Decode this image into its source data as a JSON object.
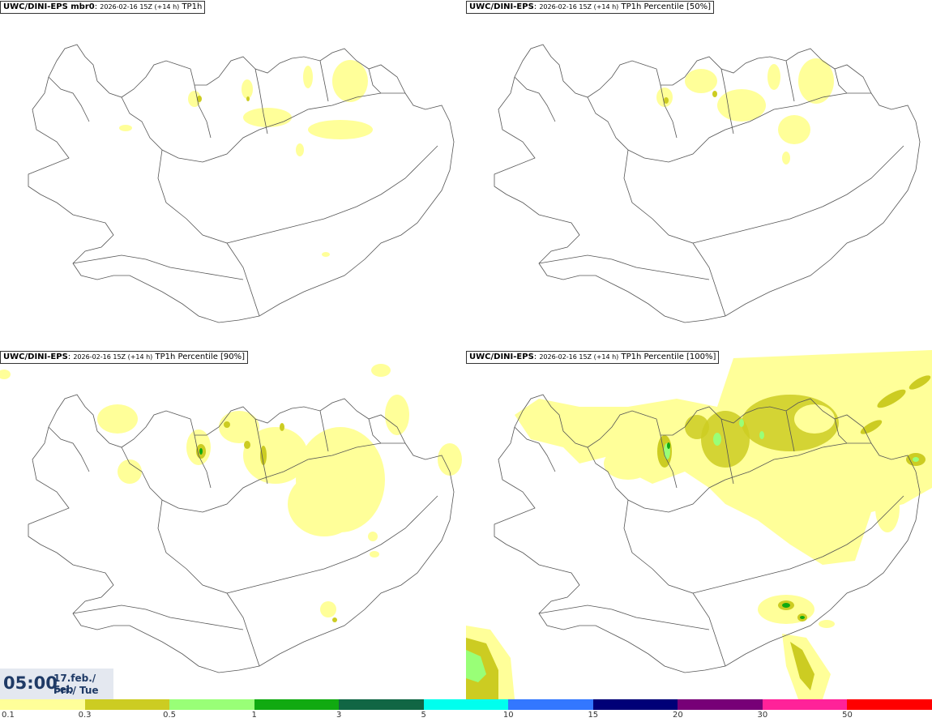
{
  "panels": [
    {
      "model": "UWC/DINI-EPS mbr0",
      "run": "2026-02-16 15Z (+14 h)",
      "product": "TP1h"
    },
    {
      "model": "UWC/DINI-EPS",
      "run": "2026-02-16 15Z (+14 h)",
      "product": "TP1h Percentile [50%]"
    },
    {
      "model": "UWC/DINI-EPS",
      "run": "2026-02-16 15Z (+14 h)",
      "product": "TP1h Percentile [90%]"
    },
    {
      "model": "UWC/DINI-EPS",
      "run": "2026-02-16 15Z (+14 h)",
      "product": "TP1h Percentile [100%]"
    }
  ],
  "valid_time": {
    "hour": "05:00",
    "date_line1": "17.feb./ Feb",
    "date_line2": "Þri./ Tue"
  },
  "legend": {
    "labels": [
      "0.1",
      "0.3",
      "0.5",
      "1",
      "3",
      "5",
      "10",
      "15",
      "20",
      "30",
      "50"
    ],
    "colors": [
      "#ffff99",
      "#cccc22",
      "#99ff77",
      "#11aa11",
      "#116644",
      "#00ffee",
      "#3377ff",
      "#000077",
      "#770077",
      "#ff2299",
      "#ff0000"
    ]
  },
  "map": {
    "coastline_color": "#555555",
    "region": "Iceland"
  }
}
